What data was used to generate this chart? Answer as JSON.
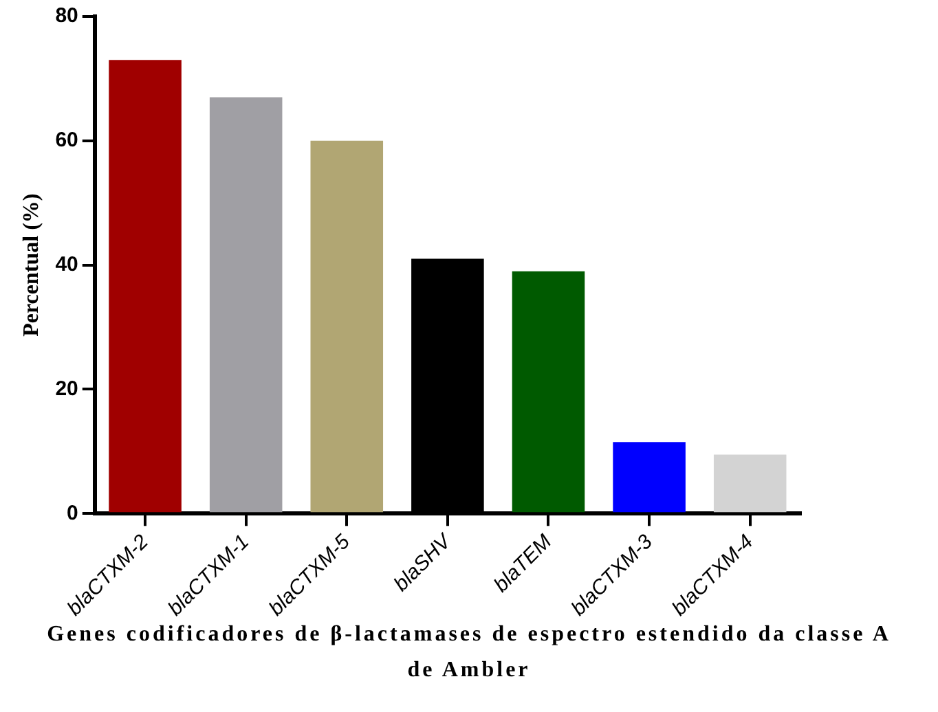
{
  "chart_data": {
    "type": "bar",
    "xlabel": "Genes codificadores de β-lactamases de espectro estendido da classe A de Ambler",
    "ylabel": "Percentual (%)",
    "categories": [
      "blaCTXM-2",
      "blaCTXM-1",
      "blaCTXM-5",
      "blaSHV",
      "blaTEM",
      "blaCTXM-3",
      "blaCTXM-4"
    ],
    "values": [
      73,
      67,
      60,
      41,
      39,
      11.5,
      9.5
    ],
    "colors": [
      "#a00000",
      "#a09fa4",
      "#b1a673",
      "#000000",
      "#005a00",
      "#0000ff",
      "#d3d3d3"
    ],
    "ylim": [
      0,
      80
    ],
    "yticks": [
      0,
      20,
      40,
      60,
      80
    ],
    "grid": false,
    "legend": false
  }
}
